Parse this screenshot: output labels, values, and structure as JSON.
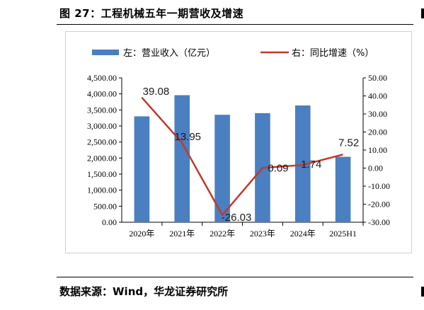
{
  "figure": {
    "title": "图 27：工程机械五年一期营收及增速",
    "source": "数据来源：Wind，华龙证券研究所"
  },
  "chart_data": {
    "type": "bar",
    "categories": [
      "2020年",
      "2021年",
      "2022年",
      "2023年",
      "2024年",
      "2025H1"
    ],
    "series": [
      {
        "name": "左：营业收入（亿元）",
        "type": "bar",
        "axis": "left",
        "color": "#4a7fc1",
        "values": [
          3300,
          3960,
          3350,
          3400,
          3640,
          2040
        ]
      },
      {
        "name": "右：同比增速（%）",
        "type": "line",
        "axis": "right",
        "color": "#c0392b",
        "values": [
          39.08,
          13.95,
          -26.03,
          0.09,
          1.74,
          7.52
        ],
        "labels": [
          "39.08",
          "13.95",
          "-26.03",
          "0.09",
          "1.74",
          "7.52"
        ]
      }
    ],
    "y_left": {
      "min": 0,
      "max": 4500,
      "ticks": [
        "0.00",
        "500.00",
        "1,000.00",
        "1,500.00",
        "2,000.00",
        "2,500.00",
        "3,000.00",
        "3,500.00",
        "4,000.00",
        "4,500.00"
      ]
    },
    "y_right": {
      "min": -30,
      "max": 50,
      "ticks": [
        "-30.00",
        "-20.00",
        "-10.00",
        "0.00",
        "10.00",
        "20.00",
        "30.00",
        "40.00",
        "50.00"
      ]
    },
    "legend_position": "top",
    "grid": false
  }
}
